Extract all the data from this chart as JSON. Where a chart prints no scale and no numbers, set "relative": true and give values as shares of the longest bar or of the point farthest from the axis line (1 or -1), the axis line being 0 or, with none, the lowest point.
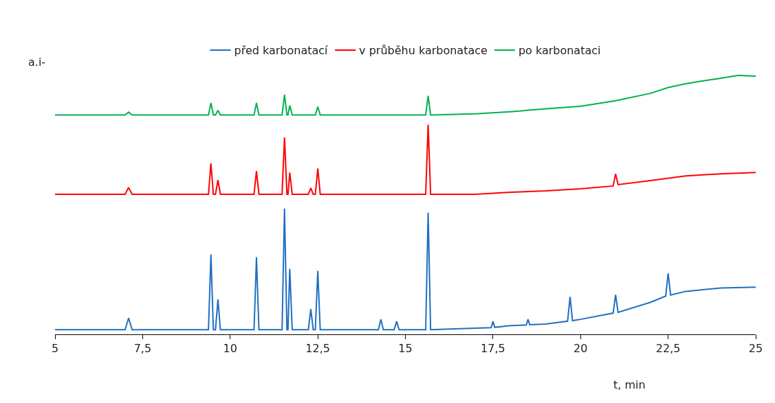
{
  "chart_data": {
    "type": "line",
    "relative": true,
    "ylabel": "a.i-",
    "xlabel": "t, min",
    "xlim": [
      5,
      25
    ],
    "xticks": [
      5,
      {
        "value": 7.5,
        "label": "7,5"
      },
      10,
      {
        "value": 12.5,
        "label": "12,5"
      },
      15,
      {
        "value": 17.5,
        "label": "17,5"
      },
      20,
      {
        "value": 22.5,
        "label": "22,5"
      },
      25
    ],
    "legend": "top",
    "series": [
      {
        "name": "před karbonatací",
        "color": "#1f6fc0",
        "x": [
          5,
          7.0,
          7.1,
          7.2,
          9.38,
          9.45,
          9.52,
          9.58,
          9.65,
          9.72,
          10.68,
          10.75,
          10.82,
          11.48,
          11.55,
          11.62,
          11.65,
          11.7,
          11.77,
          12.23,
          12.3,
          12.37,
          12.43,
          12.5,
          12.57,
          14.23,
          14.3,
          14.37,
          14.68,
          14.75,
          14.82,
          15.58,
          15.65,
          15.72,
          17,
          17.45,
          17.5,
          17.55,
          18,
          18.45,
          18.5,
          18.55,
          19,
          19.63,
          19.7,
          19.77,
          20,
          20.93,
          21.0,
          21.07,
          22,
          22.43,
          22.5,
          22.57,
          23,
          24,
          25
        ],
        "values": [
          0.018,
          0.018,
          0.063,
          0.018,
          0.018,
          0.309,
          0.018,
          0.018,
          0.135,
          0.018,
          0.018,
          0.298,
          0.018,
          0.018,
          0.486,
          0.018,
          0.018,
          0.253,
          0.018,
          0.018,
          0.098,
          0.018,
          0.018,
          0.245,
          0.018,
          0.018,
          0.058,
          0.018,
          0.018,
          0.05,
          0.018,
          0.018,
          0.47,
          0.018,
          0.024,
          0.026,
          0.05,
          0.027,
          0.034,
          0.036,
          0.058,
          0.037,
          0.04,
          0.051,
          0.145,
          0.053,
          0.058,
          0.082,
          0.153,
          0.085,
          0.124,
          0.148,
          0.235,
          0.152,
          0.166,
          0.179,
          0.182
        ]
      },
      {
        "name": "v průběhu karbonatace",
        "color": "#ff0000",
        "x": [
          5,
          7.0,
          7.1,
          7.2,
          9.38,
          9.45,
          9.52,
          9.58,
          9.65,
          9.72,
          10.68,
          10.75,
          10.82,
          11.48,
          11.55,
          11.62,
          11.65,
          11.7,
          11.77,
          12.23,
          12.3,
          12.37,
          12.43,
          12.5,
          12.57,
          15.58,
          15.65,
          15.72,
          17,
          18,
          19,
          20,
          20.93,
          21.0,
          21.07,
          22,
          23,
          24,
          25
        ],
        "values": [
          0.541,
          0.541,
          0.567,
          0.541,
          0.541,
          0.66,
          0.541,
          0.541,
          0.596,
          0.541,
          0.541,
          0.631,
          0.541,
          0.541,
          0.76,
          0.541,
          0.541,
          0.625,
          0.541,
          0.541,
          0.565,
          0.541,
          0.541,
          0.641,
          0.541,
          0.541,
          0.81,
          0.541,
          0.541,
          0.549,
          0.554,
          0.562,
          0.573,
          0.62,
          0.578,
          0.594,
          0.612,
          0.62,
          0.625
        ]
      },
      {
        "name": "po karbonataci",
        "color": "#00b050",
        "x": [
          5,
          7.0,
          7.1,
          7.2,
          9.38,
          9.45,
          9.52,
          9.58,
          9.65,
          9.72,
          10.68,
          10.75,
          10.82,
          11.48,
          11.55,
          11.62,
          11.65,
          11.7,
          11.77,
          12.43,
          12.5,
          12.57,
          15.58,
          15.65,
          15.72,
          17,
          18,
          19,
          20,
          21,
          22,
          22.5,
          23,
          23.5,
          24,
          24.5,
          25
        ],
        "values": [
          0.847,
          0.847,
          0.858,
          0.847,
          0.847,
          0.894,
          0.847,
          0.847,
          0.865,
          0.847,
          0.847,
          0.894,
          0.847,
          0.847,
          0.926,
          0.847,
          0.847,
          0.884,
          0.847,
          0.847,
          0.879,
          0.847,
          0.847,
          0.921,
          0.847,
          0.852,
          0.86,
          0.871,
          0.881,
          0.902,
          0.931,
          0.953,
          0.968,
          0.979,
          0.989,
          1.0,
          0.997
        ]
      }
    ]
  }
}
